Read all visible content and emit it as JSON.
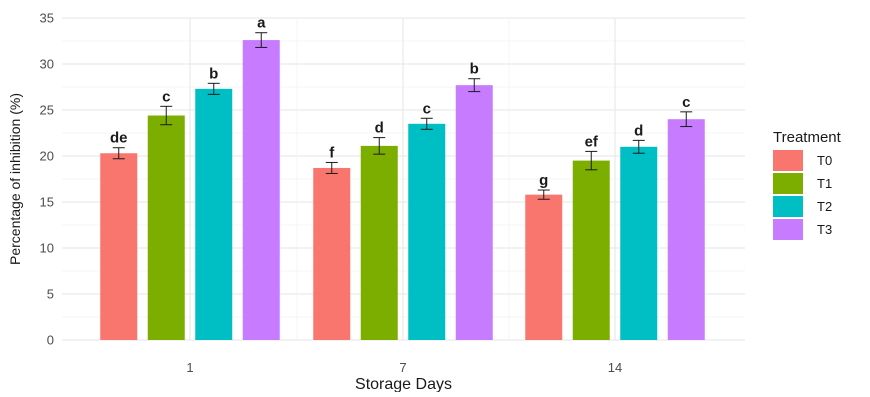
{
  "chart_data": {
    "type": "bar",
    "title": "",
    "xlabel": "Storage Days",
    "ylabel": "Percentage of inhibition (%)",
    "ylim": [
      0,
      35
    ],
    "yticks": [
      0,
      5,
      10,
      15,
      20,
      25,
      30,
      35
    ],
    "grid": true,
    "categories": [
      "1",
      "7",
      "14"
    ],
    "legend": {
      "title": "Treatment",
      "position": "right"
    },
    "series": [
      {
        "name": "T0",
        "color": "#F8766D",
        "values": [
          20.3,
          18.7,
          15.8
        ],
        "errors": [
          0.6,
          0.6,
          0.5
        ],
        "labels": [
          "de",
          "f",
          "g"
        ]
      },
      {
        "name": "T1",
        "color": "#7CAE00",
        "values": [
          24.4,
          21.1,
          19.5
        ],
        "errors": [
          1.0,
          0.9,
          1.0
        ],
        "labels": [
          "c",
          "d",
          "ef"
        ]
      },
      {
        "name": "T2",
        "color": "#00BFC4",
        "values": [
          27.3,
          23.5,
          21.0
        ],
        "errors": [
          0.6,
          0.6,
          0.7
        ],
        "labels": [
          "b",
          "c",
          "d"
        ]
      },
      {
        "name": "T3",
        "color": "#C77CFF",
        "values": [
          32.6,
          27.7,
          24.0
        ],
        "errors": [
          0.8,
          0.7,
          0.8
        ],
        "labels": [
          "a",
          "b",
          "c"
        ]
      }
    ]
  }
}
